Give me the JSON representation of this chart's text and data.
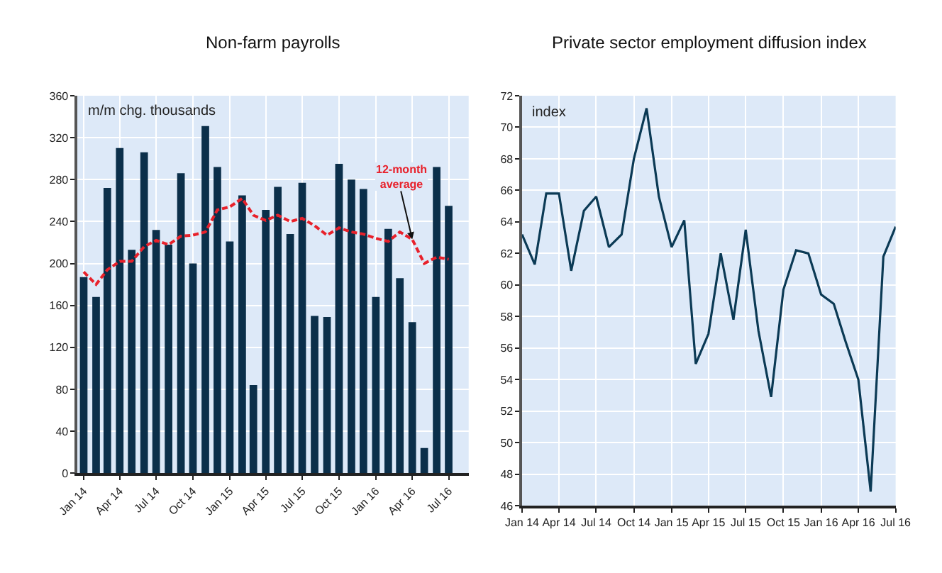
{
  "chart_data": [
    {
      "type": "bar",
      "title": "Non-farm payrolls",
      "ylabel": "m/m chg. thousands",
      "x": [
        "2014-01",
        "2014-02",
        "2014-03",
        "2014-04",
        "2014-05",
        "2014-06",
        "2014-07",
        "2014-08",
        "2014-09",
        "2014-10",
        "2014-11",
        "2014-12",
        "2015-01",
        "2015-02",
        "2015-03",
        "2015-04",
        "2015-05",
        "2015-06",
        "2015-07",
        "2015-08",
        "2015-09",
        "2015-10",
        "2015-11",
        "2015-12",
        "2016-01",
        "2016-02",
        "2016-03",
        "2016-04",
        "2016-05",
        "2016-06",
        "2016-07"
      ],
      "series": [
        {
          "type": "bar",
          "color": "#0b2f4a",
          "values": [
            187,
            168,
            272,
            310,
            213,
            306,
            232,
            218,
            286,
            200,
            331,
            292,
            221,
            265,
            84,
            251,
            273,
            228,
            277,
            150,
            149,
            295,
            280,
            271,
            168,
            233,
            186,
            144,
            24,
            292,
            255
          ]
        },
        {
          "type": "line",
          "color": "#e8212b",
          "line_style": "dashed",
          "marker": "none",
          "values": [
            192,
            180,
            194,
            202,
            202,
            216,
            222,
            218,
            226,
            227,
            230,
            251,
            254,
            262,
            246,
            241,
            246,
            240,
            243,
            236,
            227,
            234,
            230,
            228,
            224,
            221,
            230,
            223,
            200,
            206,
            204
          ]
        }
      ],
      "annotations": [
        {
          "text": "12-month\naverage",
          "x": "2016-04",
          "y": 223
        }
      ],
      "xlim": [
        "2013-12-16",
        "2016-08-20"
      ],
      "xticks": [
        {
          "value": "2014-01",
          "label": "Jan 14"
        },
        {
          "value": "2014-04",
          "label": "Apr 14"
        },
        {
          "value": "2014-07",
          "label": "Jul 14"
        },
        {
          "value": "2014-10",
          "label": "Oct 14"
        },
        {
          "value": "2015-01",
          "label": "Jan 15"
        },
        {
          "value": "2015-04",
          "label": "Apr 15"
        },
        {
          "value": "2015-07",
          "label": "Jul 15"
        },
        {
          "value": "2015-10",
          "label": "Oct 15"
        },
        {
          "value": "2016-01",
          "label": "Jan 16"
        },
        {
          "value": "2016-04",
          "label": "Apr 16"
        },
        {
          "value": "2016-07",
          "label": "Jul 16"
        }
      ],
      "ylim": [
        0,
        360
      ],
      "yticks": [
        0,
        40,
        80,
        120,
        160,
        200,
        240,
        280,
        320,
        360
      ],
      "grid": true
    },
    {
      "type": "line",
      "title": "Private sector employment diffusion index",
      "ylabel": "index",
      "x": [
        "2014-01",
        "2014-02",
        "2014-03",
        "2014-04",
        "2014-05",
        "2014-06",
        "2014-07",
        "2014-08",
        "2014-09",
        "2014-10",
        "2014-11",
        "2014-12",
        "2015-01",
        "2015-02",
        "2015-03",
        "2015-04",
        "2015-05",
        "2015-06",
        "2015-07",
        "2015-08",
        "2015-09",
        "2015-10",
        "2015-11",
        "2015-12",
        "2016-01",
        "2016-02",
        "2016-03",
        "2016-04",
        "2016-05",
        "2016-06",
        "2016-07"
      ],
      "series": [
        {
          "color": "#0b3a55",
          "values": [
            63.2,
            61.3,
            65.8,
            65.8,
            60.9,
            64.7,
            65.6,
            62.4,
            63.2,
            68.0,
            71.2,
            65.6,
            62.4,
            64.1,
            55.0,
            56.9,
            62.0,
            57.8,
            63.5,
            57.1,
            52.9,
            59.7,
            62.2,
            62.0,
            59.4,
            58.8,
            56.4,
            54.0,
            46.9,
            61.8,
            63.7
          ]
        }
      ],
      "marker": "none",
      "line_style": "solid",
      "xlim": [
        "2014-01",
        "2016-07"
      ],
      "xticks": [
        {
          "value": "2014-01",
          "label": "Jan 14"
        },
        {
          "value": "2014-04",
          "label": "Apr 14"
        },
        {
          "value": "2014-07",
          "label": "Jul 14"
        },
        {
          "value": "2014-10",
          "label": "Oct 14"
        },
        {
          "value": "2015-01",
          "label": "Jan 15"
        },
        {
          "value": "2015-04",
          "label": "Apr 15"
        },
        {
          "value": "2015-07",
          "label": "Jul 15"
        },
        {
          "value": "2015-10",
          "label": "Oct 15"
        },
        {
          "value": "2016-01",
          "label": "Jan 16"
        },
        {
          "value": "2016-04",
          "label": "Apr 16"
        },
        {
          "value": "2016-07",
          "label": "Jul 16"
        }
      ],
      "ylim": [
        46,
        72
      ],
      "yticks": [
        46,
        48,
        50,
        52,
        54,
        56,
        58,
        60,
        62,
        64,
        66,
        68,
        70,
        72
      ],
      "grid": true
    }
  ]
}
